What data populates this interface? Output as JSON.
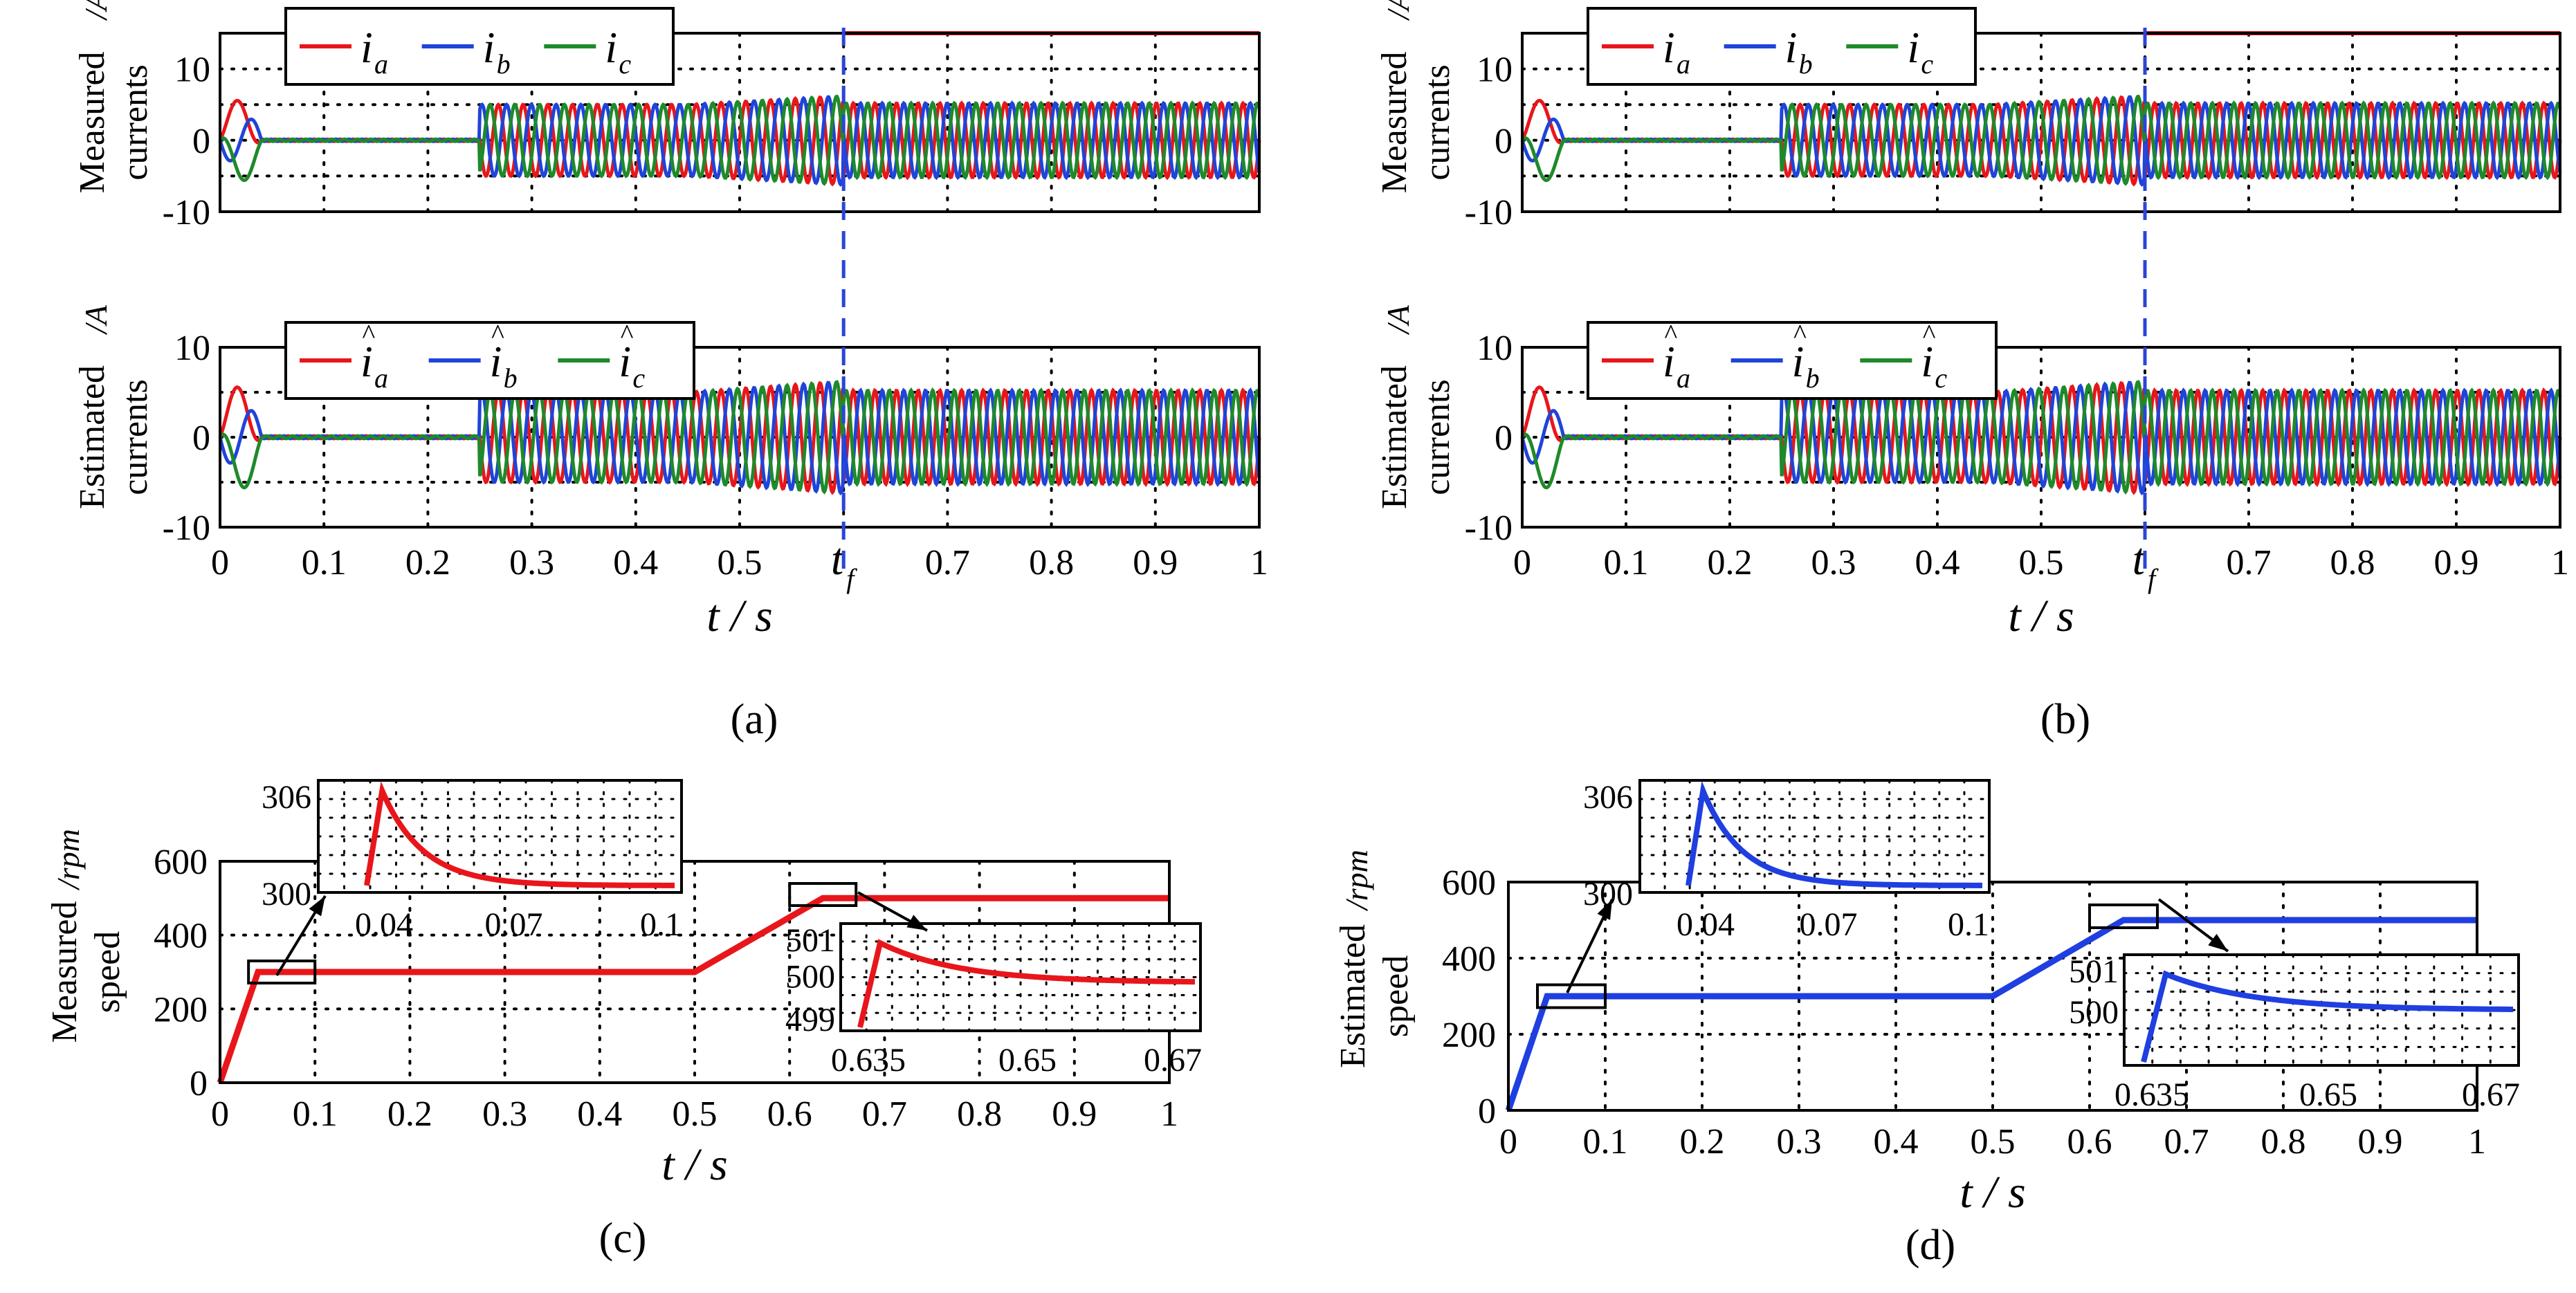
{
  "figure_panels": [
    "(a)",
    "(b)",
    "(c)",
    "(d)"
  ],
  "colors": {
    "a": "#e8161b",
    "b": "#1f44d8",
    "c": "#1e8a2a",
    "fault_line": "#2b45d8",
    "speed_c": "#e8161b",
    "speed_d": "#1f3fe0"
  },
  "chart_data": [
    {
      "panel": "a-top",
      "type": "line",
      "title": "",
      "ylabel_main": "Measured",
      "ylabel_unit": "/A",
      "ylabel_sub": "currents",
      "legend": [
        "a",
        "b",
        "c"
      ],
      "legend_symbol": "i",
      "hat": false,
      "x_range": [
        0,
        1
      ],
      "ylim": [
        -10,
        15
      ],
      "y_ticks": [
        "10",
        "0",
        "-10"
      ],
      "series_description": "three-phase sinusoids: startup burst 0-0.04 s, zero 0.04-0.25 s, amplitude 5 A from 0.25 s, fault at t_f (~0.6 s)",
      "fault_marker": "t_f"
    },
    {
      "panel": "a-bottom",
      "type": "line",
      "ylabel_main": "Estimated",
      "ylabel_unit": "/A",
      "ylabel_sub": "currents",
      "legend": [
        "a",
        "b",
        "c"
      ],
      "legend_symbol": "i",
      "hat": true,
      "x_range": [
        0,
        1
      ],
      "ylim": [
        -10,
        10
      ],
      "y_ticks": [
        "10",
        "0",
        "-10"
      ],
      "x_ticks": [
        "0",
        "0.1",
        "0.2",
        "0.3",
        "0.4",
        "0.5",
        "0.7",
        "0.8",
        "0.9",
        "1"
      ],
      "fault_marker": "t",
      "fault_sub": "f",
      "xlabel": "t / s"
    },
    {
      "panel": "b-top",
      "type": "line",
      "ylabel_main": "Measured",
      "ylabel_unit": "/A",
      "ylabel_sub": "currents",
      "legend": [
        "a",
        "b",
        "c"
      ],
      "legend_symbol": "i",
      "hat": false,
      "x_range": [
        0,
        1
      ],
      "ylim": [
        -10,
        15
      ],
      "y_ticks": [
        "10",
        "0",
        "-10"
      ]
    },
    {
      "panel": "b-bottom",
      "type": "line",
      "ylabel_main": "Estimated",
      "ylabel_unit": "/A",
      "ylabel_sub": "currents",
      "legend": [
        "a",
        "b",
        "c"
      ],
      "legend_symbol": "i",
      "hat": true,
      "x_range": [
        0,
        1
      ],
      "ylim": [
        -10,
        10
      ],
      "y_ticks": [
        "10",
        "0",
        "-10"
      ],
      "x_ticks": [
        "0",
        "0.1",
        "0.2",
        "0.3",
        "0.4",
        "0.5",
        "0.7",
        "0.8",
        "0.9",
        "1"
      ],
      "fault_marker": "t",
      "fault_sub": "f",
      "xlabel": "t / s"
    },
    {
      "panel": "c",
      "type": "line",
      "ylabel_main": "Measured",
      "ylabel_unit": "/rpm",
      "ylabel_sub": "speed",
      "x_range": [
        0,
        1
      ],
      "ylim": [
        0,
        600
      ],
      "y_ticks": [
        "600",
        "400",
        "200",
        "0"
      ],
      "x_ticks": [
        "0",
        "0.1",
        "0.2",
        "0.3",
        "0.4",
        "0.5",
        "0.6",
        "0.7",
        "0.8",
        "0.9",
        "1"
      ],
      "speed_profile": [
        [
          0,
          0
        ],
        [
          0.04,
          300
        ],
        [
          0.5,
          300
        ],
        [
          0.635,
          500
        ],
        [
          1,
          500
        ]
      ],
      "zoom1": {
        "y_ticks": [
          "306",
          "300"
        ],
        "x_ticks": [
          "0.04",
          "0.07",
          "0.1"
        ],
        "x_range": [
          0.03,
          0.1
        ],
        "peak": 306
      },
      "zoom2": {
        "y_ticks": [
          "501",
          "500",
          "499"
        ],
        "x_ticks": [
          "0.635",
          "0.65",
          "0.67"
        ],
        "x_range": [
          0.632,
          0.67
        ],
        "peak": 501
      },
      "xlabel": "t / s"
    },
    {
      "panel": "d",
      "type": "line",
      "ylabel_main": "Estimated",
      "ylabel_unit": "/rpm",
      "ylabel_sub": "speed",
      "x_range": [
        0,
        1
      ],
      "ylim": [
        0,
        600
      ],
      "y_ticks": [
        "600",
        "400",
        "200",
        "0"
      ],
      "x_ticks": [
        "0",
        "0.1",
        "0.2",
        "0.3",
        "0.4",
        "0.5",
        "0.6",
        "0.7",
        "0.8",
        "0.9",
        "1"
      ],
      "speed_profile": [
        [
          0,
          0
        ],
        [
          0.04,
          300
        ],
        [
          0.5,
          300
        ],
        [
          0.635,
          500
        ],
        [
          1,
          500
        ]
      ],
      "zoom1": {
        "y_ticks": [
          "306",
          "300"
        ],
        "x_ticks": [
          "0.04",
          "0.07",
          "0.1"
        ],
        "x_range": [
          0.03,
          0.1
        ],
        "peak": 306
      },
      "zoom2": {
        "y_ticks": [
          "501",
          "500"
        ],
        "x_ticks": [
          "0.635",
          "0.65",
          "0.67"
        ],
        "x_range": [
          0.632,
          0.67
        ],
        "peak": 501
      },
      "xlabel": "t / s"
    }
  ]
}
